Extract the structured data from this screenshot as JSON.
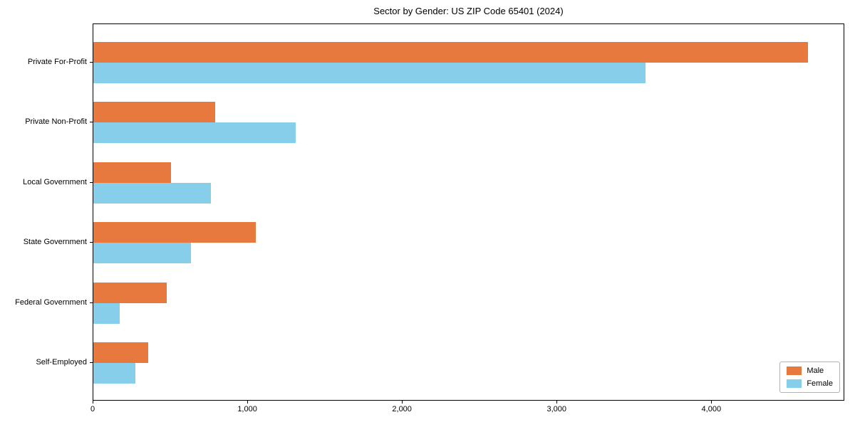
{
  "chart_data": {
    "type": "bar",
    "orientation": "horizontal",
    "title": "Sector by Gender: US ZIP Code 65401 (2024)",
    "categories": [
      "Private For-Profit",
      "Private Non-Profit",
      "Local Government",
      "State Government",
      "Federal Government",
      "Self-Employed"
    ],
    "series": [
      {
        "name": "Male",
        "color": "#e8793e",
        "values": [
          4620,
          790,
          500,
          1050,
          475,
          355
        ]
      },
      {
        "name": "Female",
        "color": "#87ceeb",
        "values": [
          3570,
          1310,
          760,
          630,
          170,
          270
        ]
      }
    ],
    "xlim": [
      0,
      4860
    ],
    "xticks": [
      0,
      1000,
      2000,
      3000,
      4000
    ],
    "xtick_labels": [
      "0",
      "1,000",
      "2,000",
      "3,000",
      "4,000"
    ],
    "grid": false,
    "legend_position": "lower right"
  }
}
